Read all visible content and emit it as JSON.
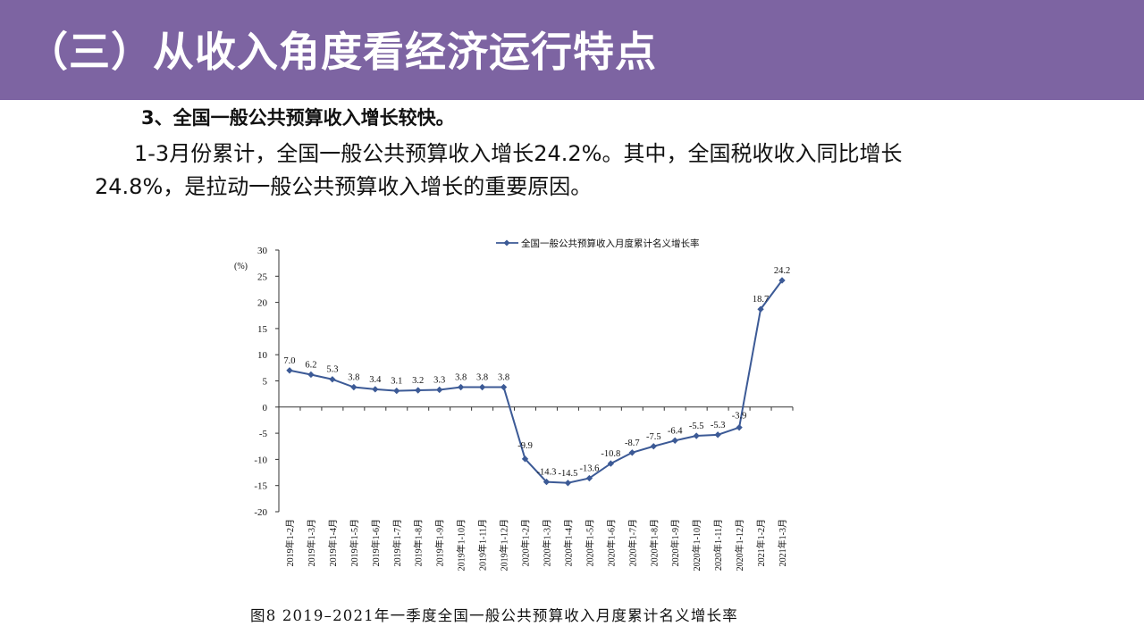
{
  "header": {
    "title": "（三）从收入角度看经济运行特点",
    "bg_color": "#7d64a2"
  },
  "content": {
    "subheading": "3、全国一般公共预算收入增长较快。",
    "paragraph": "1-3月份累计，全国一般公共预算收入增长24.2%。其中，全国税收收入同比增长24.8%，是拉动一般公共预算收入增长的重要原因。"
  },
  "chart_data": {
    "type": "line",
    "title": "",
    "ylabel": "(%)",
    "xlabel": "",
    "ylim": [
      -20,
      30
    ],
    "yticks": [
      30,
      25,
      20,
      15,
      10,
      5,
      0,
      -5,
      -10,
      -15,
      -20
    ],
    "legend": "全国一般公共预算收入月度累计名义增长率",
    "legend_position": "top-right",
    "line_color": "#3c5a96",
    "categories": [
      "2019年1-2月",
      "2019年1-3月",
      "2019年1-4月",
      "2019年1-5月",
      "2019年1-6月",
      "2019年1-7月",
      "2019年1-8月",
      "2019年1-9月",
      "2019年1-10月",
      "2019年1-11月",
      "2019年1-12月",
      "2020年1-2月",
      "2020年1-3月",
      "2020年1-4月",
      "2020年1-5月",
      "2020年1-6月",
      "2020年1-7月",
      "2020年1-8月",
      "2020年1-9月",
      "2020年1-10月",
      "2020年1-11月",
      "2020年1-12月",
      "2021年1-2月",
      "2021年1-3月"
    ],
    "values": [
      7.0,
      6.2,
      5.3,
      3.8,
      3.4,
      3.1,
      3.2,
      3.3,
      3.8,
      3.8,
      3.8,
      -9.9,
      -14.3,
      -14.5,
      -13.6,
      -10.8,
      -8.7,
      -7.5,
      -6.4,
      -5.5,
      -5.3,
      -3.9,
      18.7,
      24.2
    ],
    "labels": [
      "7.0",
      "6.2",
      "5.3",
      "3.8",
      "3.4",
      "3.1",
      "3.2",
      "3.3",
      "3.8",
      "3.8",
      "3.8",
      "-9.9",
      "-14.3",
      "-14.5",
      "-13.6",
      "-10.8",
      "-8.7",
      "-7.5",
      "-6.4",
      "-5.5",
      "-5.3",
      "-3.9",
      "18.7",
      "24.2"
    ]
  },
  "caption": "图8  2019–2021年一季度全国一般公共预算收入月度累计名义增长率"
}
